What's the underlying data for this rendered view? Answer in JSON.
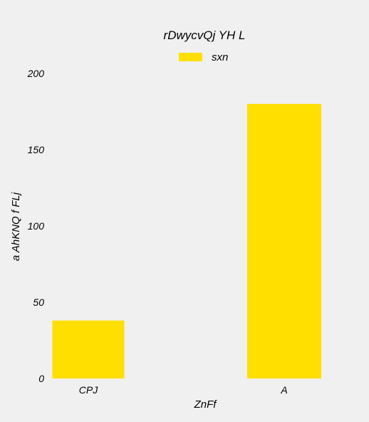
{
  "chart_data": {
    "type": "bar",
    "title": "rDwycvQj YH L",
    "xlabel": "ZnFf",
    "ylabel": "a AhKNQ  f FLj",
    "categories": [
      "CPJ",
      "A"
    ],
    "series": [
      {
        "name": "sxn",
        "values": [
          38,
          180
        ],
        "color": "#ffdf00"
      }
    ],
    "ylim": [
      0,
      200
    ],
    "yticks": [
      "0",
      "50",
      "100",
      "150",
      "200"
    ],
    "grid": false,
    "legend_position": "top-center"
  }
}
